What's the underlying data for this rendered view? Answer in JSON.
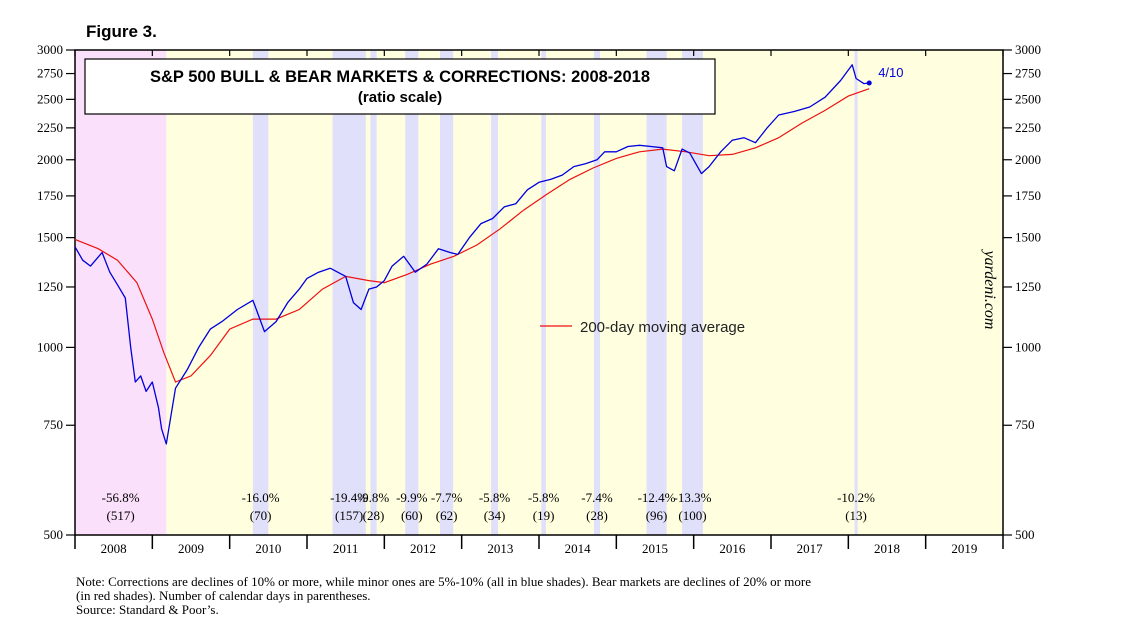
{
  "figure_label": "Figure 3.",
  "chart_data": {
    "type": "line",
    "title": "S&P 500 BULL & BEAR MARKETS & CORRECTIONS: 2008-2018",
    "subtitle": "(ratio scale)",
    "y_scale": "log",
    "ylim": [
      500,
      3000
    ],
    "y_ticks": [
      500,
      750,
      1000,
      1250,
      1500,
      1750,
      2000,
      2250,
      2500,
      2750,
      3000
    ],
    "y_tick_labels": [
      "500",
      "750",
      "1000",
      "1250",
      "1500",
      "1750",
      "2000",
      "2250",
      "2500",
      "2750",
      "3000"
    ],
    "x_tick_labels": [
      "2008",
      "2009",
      "2010",
      "2011",
      "2012",
      "2013",
      "2014",
      "2015",
      "2016",
      "2017",
      "2018",
      "2019"
    ],
    "xlim": [
      2008.0,
      2020.0
    ],
    "last_point_label": "4/10",
    "legend": [
      {
        "name": "200-day moving average",
        "color": "#ee1111"
      }
    ],
    "watermark": "yardeni.com",
    "colors": {
      "plot_background": "#ffffe0",
      "bear_market": "#fbe0fb",
      "correction": "#e0e0fa",
      "price_line": "#0000dd",
      "ma_line": "#ee1111"
    },
    "series": [
      {
        "name": "S&P 500",
        "x": [
          2008.0,
          2008.1,
          2008.2,
          2008.35,
          2008.45,
          2008.55,
          2008.65,
          2008.72,
          2008.78,
          2008.85,
          2008.92,
          2009.0,
          2009.08,
          2009.12,
          2009.18,
          2009.3,
          2009.45,
          2009.6,
          2009.75,
          2009.9,
          2010.1,
          2010.3,
          2010.45,
          2010.6,
          2010.75,
          2010.9,
          2011.0,
          2011.15,
          2011.3,
          2011.5,
          2011.6,
          2011.7,
          2011.8,
          2011.9,
          2012.0,
          2012.1,
          2012.25,
          2012.4,
          2012.55,
          2012.7,
          2012.85,
          2012.95,
          2013.1,
          2013.25,
          2013.4,
          2013.55,
          2013.7,
          2013.85,
          2014.0,
          2014.15,
          2014.3,
          2014.45,
          2014.6,
          2014.75,
          2014.85,
          2015.0,
          2015.15,
          2015.3,
          2015.45,
          2015.6,
          2015.65,
          2015.75,
          2015.85,
          2015.95,
          2016.1,
          2016.2,
          2016.35,
          2016.5,
          2016.65,
          2016.8,
          2016.95,
          2017.1,
          2017.3,
          2017.5,
          2017.7,
          2017.9,
          2018.05,
          2018.1,
          2018.2,
          2018.27
        ],
        "values": [
          1450,
          1380,
          1350,
          1420,
          1320,
          1260,
          1200,
          1000,
          880,
          900,
          850,
          880,
          800,
          740,
          700,
          860,
          920,
          1000,
          1070,
          1100,
          1150,
          1190,
          1060,
          1100,
          1180,
          1240,
          1290,
          1320,
          1340,
          1300,
          1180,
          1150,
          1240,
          1250,
          1280,
          1350,
          1400,
          1320,
          1360,
          1440,
          1420,
          1410,
          1500,
          1580,
          1610,
          1680,
          1700,
          1790,
          1840,
          1860,
          1890,
          1950,
          1970,
          2000,
          2060,
          2060,
          2100,
          2110,
          2100,
          2090,
          1950,
          1920,
          2080,
          2050,
          1900,
          1950,
          2060,
          2150,
          2170,
          2130,
          2250,
          2360,
          2390,
          2430,
          2520,
          2680,
          2840,
          2700,
          2650,
          2656
        ]
      },
      {
        "name": "200-day moving average",
        "x": [
          2008.0,
          2008.3,
          2008.55,
          2008.8,
          2009.0,
          2009.15,
          2009.3,
          2009.5,
          2009.75,
          2010.0,
          2010.3,
          2010.6,
          2010.9,
          2011.2,
          2011.5,
          2011.8,
          2012.0,
          2012.3,
          2012.6,
          2012.9,
          2013.2,
          2013.5,
          2013.8,
          2014.1,
          2014.4,
          2014.7,
          2015.0,
          2015.3,
          2015.6,
          2015.9,
          2016.2,
          2016.5,
          2016.8,
          2017.1,
          2017.4,
          2017.7,
          2018.0,
          2018.27
        ],
        "values": [
          1490,
          1440,
          1380,
          1270,
          1110,
          980,
          880,
          900,
          970,
          1070,
          1110,
          1110,
          1150,
          1240,
          1300,
          1280,
          1270,
          1310,
          1360,
          1400,
          1460,
          1550,
          1660,
          1760,
          1860,
          1940,
          2010,
          2060,
          2080,
          2060,
          2030,
          2040,
          2090,
          2170,
          2290,
          2400,
          2530,
          2600
        ]
      }
    ],
    "shaded_periods": [
      {
        "kind": "bear",
        "start": 2008.0,
        "end": 2009.18,
        "pct": "-56.8%",
        "days": "(517)"
      },
      {
        "kind": "correction",
        "start": 2010.3,
        "end": 2010.5,
        "pct": "-16.0%",
        "days": "(70)"
      },
      {
        "kind": "correction",
        "start": 2011.33,
        "end": 2011.76,
        "pct": "-19.4%",
        "days": "(157)"
      },
      {
        "kind": "correction",
        "start": 2011.82,
        "end": 2011.9,
        "pct": "-9.8%",
        "days": "(28)"
      },
      {
        "kind": "correction",
        "start": 2012.27,
        "end": 2012.44,
        "pct": "-9.9%",
        "days": "(60)"
      },
      {
        "kind": "correction",
        "start": 2012.72,
        "end": 2012.89,
        "pct": "-7.7%",
        "days": "(62)"
      },
      {
        "kind": "correction",
        "start": 2013.38,
        "end": 2013.47,
        "pct": "-5.8%",
        "days": "(34)"
      },
      {
        "kind": "correction",
        "start": 2014.03,
        "end": 2014.09,
        "pct": "-5.8%",
        "days": "(19)"
      },
      {
        "kind": "correction",
        "start": 2014.71,
        "end": 2014.79,
        "pct": "-7.4%",
        "days": "(28)"
      },
      {
        "kind": "correction",
        "start": 2015.39,
        "end": 2015.65,
        "pct": "-12.4%",
        "days": "(96)"
      },
      {
        "kind": "correction",
        "start": 2015.85,
        "end": 2016.12,
        "pct": "-13.3%",
        "days": "(100)"
      },
      {
        "kind": "correction",
        "start": 2018.08,
        "end": 2018.12,
        "pct": "-10.2%",
        "days": "(13)"
      }
    ]
  },
  "notes": [
    "Note: Corrections are declines of 10% or more, while minor ones are 5%-10% (all in blue shades).  Bear markets are declines of 20% or more",
    "(in red shades). Number of calendar days in parentheses.",
    "Source: Standard & Poor’s."
  ]
}
